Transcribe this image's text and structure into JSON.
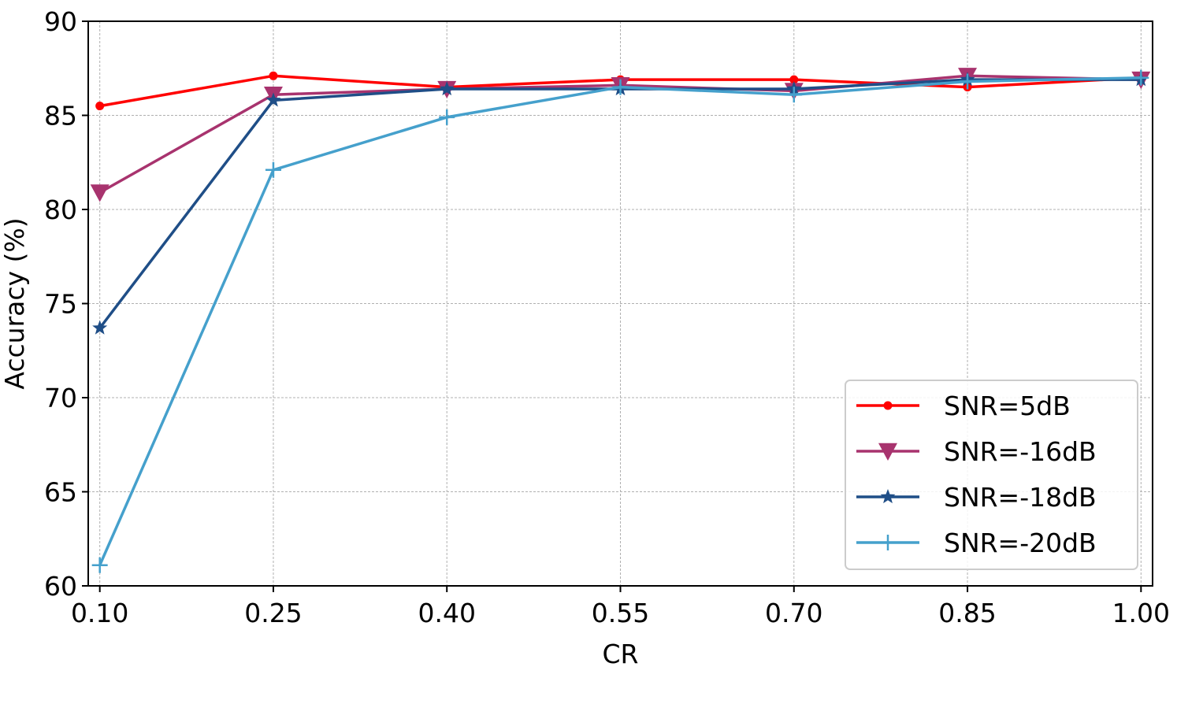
{
  "chart_data": {
    "type": "line",
    "title": "",
    "xlabel": "CR",
    "ylabel": "Accuracy (%)",
    "x": [
      0.1,
      0.25,
      0.4,
      0.55,
      0.7,
      0.85,
      1.0
    ],
    "x_tick_labels": [
      "0.10",
      "0.25",
      "0.40",
      "0.55",
      "0.70",
      "0.85",
      "1.00"
    ],
    "xlim": [
      0.09,
      1.01
    ],
    "ylim": [
      60,
      90
    ],
    "y_ticks": [
      60,
      65,
      70,
      75,
      80,
      85,
      90
    ],
    "y_tick_labels": [
      "60",
      "65",
      "70",
      "75",
      "80",
      "85",
      "90"
    ],
    "grid": true,
    "legend_position": "lower-right",
    "series": [
      {
        "name": "SNR=5dB",
        "color": "#ff0000",
        "marker": "circle",
        "values": [
          85.5,
          87.1,
          86.5,
          86.9,
          86.9,
          86.5,
          87.0
        ]
      },
      {
        "name": "SNR=-16dB",
        "color": "#a8336e",
        "marker": "triangle-down",
        "values": [
          80.9,
          86.1,
          86.4,
          86.6,
          86.3,
          87.1,
          86.9
        ]
      },
      {
        "name": "SNR=-18dB",
        "color": "#1f4e87",
        "marker": "star",
        "values": [
          73.7,
          85.8,
          86.4,
          86.4,
          86.4,
          86.9,
          86.9
        ]
      },
      {
        "name": "SNR=-20dB",
        "color": "#45a0cc",
        "marker": "plus",
        "values": [
          61.1,
          82.1,
          84.9,
          86.5,
          86.1,
          86.8,
          87.0
        ]
      }
    ]
  }
}
